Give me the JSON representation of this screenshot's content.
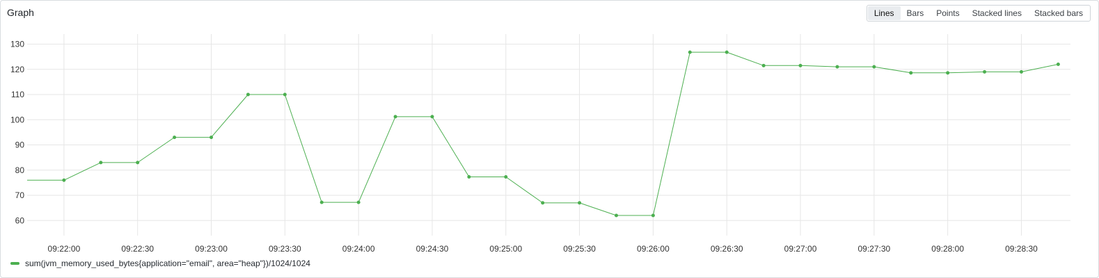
{
  "panel": {
    "title": "Graph"
  },
  "viz_toggle": {
    "options": [
      "Lines",
      "Bars",
      "Points",
      "Stacked lines",
      "Stacked bars"
    ],
    "selected": "Lines"
  },
  "colors": {
    "series": "#4caf50",
    "grid": "#e6e6e6",
    "tick_text": "#333333"
  },
  "chart_data": {
    "type": "line",
    "title": "",
    "xlabel": "",
    "ylabel": "",
    "ylim": [
      54,
      134
    ],
    "xlim": [
      "09:21:45",
      "09:28:50"
    ],
    "grid": true,
    "legend_position": "bottom-left",
    "y_ticks": [
      60,
      70,
      80,
      90,
      100,
      110,
      120,
      130
    ],
    "y_tick_labels": [
      "60",
      "70",
      "80",
      "90",
      "100",
      "110",
      "120",
      "130"
    ],
    "x_ticks": [
      "09:22:00",
      "09:22:30",
      "09:23:00",
      "09:23:30",
      "09:24:00",
      "09:24:30",
      "09:25:00",
      "09:25:30",
      "09:26:00",
      "09:26:30",
      "09:27:00",
      "09:27:30",
      "09:28:00",
      "09:28:30"
    ],
    "series": [
      {
        "name": "sum(jvm_memory_used_bytes{application=\"email\", area=\"heap\"})/1024/1024",
        "x": [
          "09:21:45",
          "09:22:00",
          "09:22:15",
          "09:22:30",
          "09:22:45",
          "09:23:00",
          "09:23:15",
          "09:23:30",
          "09:23:45",
          "09:24:00",
          "09:24:15",
          "09:24:30",
          "09:24:45",
          "09:25:00",
          "09:25:15",
          "09:25:30",
          "09:25:45",
          "09:26:00",
          "09:26:15",
          "09:26:30",
          "09:26:45",
          "09:27:00",
          "09:27:15",
          "09:27:30",
          "09:27:45",
          "09:28:00",
          "09:28:15",
          "09:28:30",
          "09:28:45"
        ],
        "values": [
          76,
          76,
          83,
          83,
          93,
          93,
          110,
          110,
          67.2,
          67.2,
          101.2,
          101.2,
          77.3,
          77.3,
          67,
          67,
          62,
          62,
          126.8,
          126.8,
          121.5,
          121.5,
          121,
          121,
          118.6,
          118.6,
          119,
          119,
          122
        ],
        "markers": [
          false,
          true,
          true,
          true,
          true,
          true,
          true,
          true,
          true,
          true,
          true,
          true,
          true,
          true,
          true,
          true,
          true,
          true,
          true,
          true,
          true,
          true,
          true,
          true,
          true,
          true,
          true,
          true,
          true
        ]
      }
    ]
  }
}
